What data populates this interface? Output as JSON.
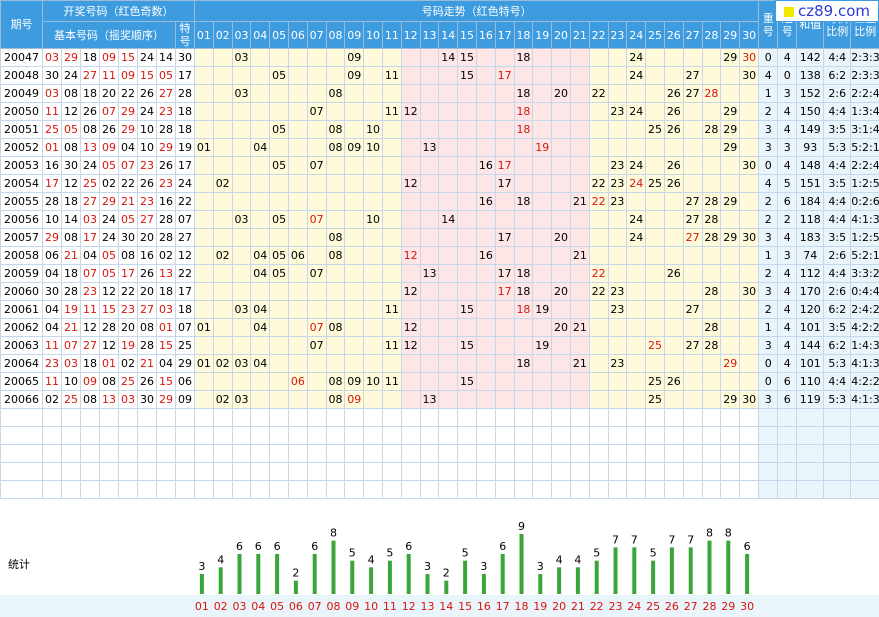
{
  "logo": {
    "text": "cz89.com"
  },
  "header": {
    "period": "期号",
    "draw_group": "开奖号码（红色奇数）",
    "trend_group": "号码走势（红色特号）",
    "basic": "基本号码（摇奖顺序）",
    "special": "特号",
    "repeat": "重号",
    "consecutive": "连号",
    "sum": "和值",
    "odd_even": "奇偶比例",
    "three_zone": "三区比例",
    "numbers": [
      "01",
      "02",
      "03",
      "04",
      "05",
      "06",
      "07",
      "08",
      "09",
      "10",
      "11",
      "12",
      "13",
      "14",
      "15",
      "16",
      "17",
      "18",
      "19",
      "20",
      "21",
      "22",
      "23",
      "24",
      "25",
      "26",
      "27",
      "28",
      "29",
      "30"
    ]
  },
  "stats": {
    "label": "统计"
  },
  "chart_data": {
    "type": "bar",
    "categories": [
      "01",
      "02",
      "03",
      "04",
      "05",
      "06",
      "07",
      "08",
      "09",
      "10",
      "11",
      "12",
      "13",
      "14",
      "15",
      "16",
      "17",
      "18",
      "19",
      "20",
      "21",
      "22",
      "23",
      "24",
      "25",
      "26",
      "27",
      "28",
      "29",
      "30"
    ],
    "values": [
      3,
      4,
      6,
      6,
      6,
      2,
      6,
      8,
      5,
      4,
      5,
      6,
      3,
      2,
      5,
      3,
      6,
      9,
      3,
      4,
      4,
      5,
      7,
      7,
      5,
      7,
      7,
      8,
      8,
      6
    ],
    "ylim": [
      0,
      9
    ],
    "bar_color": "#3aa53a"
  },
  "rows": [
    {
      "period": "20047",
      "basic": [
        "03",
        "29",
        "18",
        "09",
        "15",
        "24",
        "14"
      ],
      "special": "30",
      "trend": [
        3,
        9,
        14,
        15,
        18,
        24,
        29,
        30
      ],
      "special_pos": 30,
      "repeat": "0",
      "consecutive": "4",
      "sum": "142",
      "odd_even": "4:4",
      "zones": "2:3:3"
    },
    {
      "period": "20048",
      "basic": [
        "30",
        "24",
        "27",
        "11",
        "09",
        "15",
        "05"
      ],
      "special": "17",
      "trend": [
        5,
        9,
        11,
        15,
        17,
        24,
        27,
        30
      ],
      "special_pos": 17,
      "repeat": "4",
      "consecutive": "0",
      "sum": "138",
      "odd_even": "6:2",
      "zones": "2:3:3"
    },
    {
      "period": "20049",
      "basic": [
        "03",
        "08",
        "18",
        "20",
        "22",
        "26",
        "27"
      ],
      "special": "28",
      "trend": [
        3,
        8,
        18,
        20,
        22,
        26,
        27,
        28
      ],
      "special_pos": 28,
      "repeat": "1",
      "consecutive": "3",
      "sum": "152",
      "odd_even": "2:6",
      "zones": "2:2:4"
    },
    {
      "period": "20050",
      "basic": [
        "11",
        "12",
        "26",
        "07",
        "29",
        "24",
        "23"
      ],
      "special": "18",
      "trend": [
        7,
        11,
        12,
        18,
        23,
        24,
        26,
        29
      ],
      "special_pos": 18,
      "repeat": "2",
      "consecutive": "4",
      "sum": "150",
      "odd_even": "4:4",
      "zones": "1:3:4"
    },
    {
      "period": "20051",
      "basic": [
        "25",
        "05",
        "08",
        "26",
        "29",
        "10",
        "28"
      ],
      "special": "18",
      "trend": [
        5,
        8,
        10,
        18,
        25,
        26,
        28,
        29
      ],
      "special_pos": 18,
      "repeat": "3",
      "consecutive": "4",
      "sum": "149",
      "odd_even": "3:5",
      "zones": "3:1:4"
    },
    {
      "period": "20052",
      "basic": [
        "01",
        "08",
        "13",
        "09",
        "04",
        "10",
        "29"
      ],
      "special": "19",
      "trend": [
        1,
        4,
        8,
        9,
        10,
        13,
        19,
        29
      ],
      "special_pos": 19,
      "repeat": "3",
      "consecutive": "3",
      "sum": "93",
      "odd_even": "5:3",
      "zones": "5:2:1"
    },
    {
      "period": "20053",
      "basic": [
        "16",
        "30",
        "24",
        "05",
        "07",
        "23",
        "26"
      ],
      "special": "17",
      "trend": [
        5,
        7,
        16,
        17,
        23,
        24,
        26,
        30
      ],
      "special_pos": 17,
      "repeat": "0",
      "consecutive": "4",
      "sum": "148",
      "odd_even": "4:4",
      "zones": "2:2:4"
    },
    {
      "period": "20054",
      "basic": [
        "17",
        "12",
        "25",
        "02",
        "22",
        "26",
        "23"
      ],
      "special": "24",
      "trend": [
        2,
        12,
        17,
        22,
        23,
        24,
        25,
        26
      ],
      "special_pos": 24,
      "repeat": "4",
      "consecutive": "5",
      "sum": "151",
      "odd_even": "3:5",
      "zones": "1:2:5"
    },
    {
      "period": "20055",
      "basic": [
        "28",
        "18",
        "27",
        "29",
        "21",
        "23",
        "16"
      ],
      "special": "22",
      "trend": [
        16,
        18,
        21,
        22,
        23,
        27,
        28,
        29
      ],
      "special_pos": 22,
      "repeat": "2",
      "consecutive": "6",
      "sum": "184",
      "odd_even": "4:4",
      "zones": "0:2:6"
    },
    {
      "period": "20056",
      "basic": [
        "10",
        "14",
        "03",
        "24",
        "05",
        "27",
        "28"
      ],
      "special": "07",
      "trend": [
        3,
        5,
        7,
        10,
        14,
        24,
        27,
        28
      ],
      "special_pos": 7,
      "repeat": "2",
      "consecutive": "2",
      "sum": "118",
      "odd_even": "4:4",
      "zones": "4:1:3"
    },
    {
      "period": "20057",
      "basic": [
        "29",
        "08",
        "17",
        "24",
        "30",
        "20",
        "28"
      ],
      "special": "27",
      "trend": [
        8,
        17,
        20,
        24,
        27,
        28,
        29,
        30
      ],
      "special_pos": 27,
      "repeat": "3",
      "consecutive": "4",
      "sum": "183",
      "odd_even": "3:5",
      "zones": "1:2:5"
    },
    {
      "period": "20058",
      "basic": [
        "06",
        "21",
        "04",
        "05",
        "08",
        "16",
        "02"
      ],
      "special": "12",
      "trend": [
        2,
        4,
        5,
        6,
        8,
        12,
        16,
        21
      ],
      "special_pos": 12,
      "repeat": "1",
      "consecutive": "3",
      "sum": "74",
      "odd_even": "2:6",
      "zones": "5:2:1"
    },
    {
      "period": "20059",
      "basic": [
        "04",
        "18",
        "07",
        "05",
        "17",
        "26",
        "13"
      ],
      "special": "22",
      "trend": [
        4,
        5,
        7,
        13,
        17,
        18,
        22,
        26
      ],
      "special_pos": 22,
      "repeat": "2",
      "consecutive": "4",
      "sum": "112",
      "odd_even": "4:4",
      "zones": "3:3:2"
    },
    {
      "period": "20060",
      "basic": [
        "30",
        "28",
        "23",
        "12",
        "22",
        "20",
        "18"
      ],
      "special": "17",
      "trend": [
        12,
        17,
        18,
        20,
        22,
        23,
        28,
        30
      ],
      "special_pos": 17,
      "repeat": "3",
      "consecutive": "4",
      "sum": "170",
      "odd_even": "2:6",
      "zones": "0:4:4"
    },
    {
      "period": "20061",
      "basic": [
        "04",
        "19",
        "11",
        "15",
        "23",
        "27",
        "03"
      ],
      "special": "18",
      "trend": [
        3,
        4,
        11,
        15,
        18,
        19,
        23,
        27
      ],
      "special_pos": 18,
      "repeat": "2",
      "consecutive": "4",
      "sum": "120",
      "odd_even": "6:2",
      "zones": "2:4:2"
    },
    {
      "period": "20062",
      "basic": [
        "04",
        "21",
        "12",
        "28",
        "20",
        "08",
        "01"
      ],
      "special": "07",
      "trend": [
        1,
        4,
        7,
        8,
        12,
        20,
        21,
        28
      ],
      "special_pos": 7,
      "repeat": "1",
      "consecutive": "4",
      "sum": "101",
      "odd_even": "3:5",
      "zones": "4:2:2"
    },
    {
      "period": "20063",
      "basic": [
        "11",
        "07",
        "27",
        "12",
        "19",
        "28",
        "15"
      ],
      "special": "25",
      "trend": [
        7,
        11,
        12,
        15,
        19,
        25,
        27,
        28
      ],
      "special_pos": 25,
      "repeat": "3",
      "consecutive": "4",
      "sum": "144",
      "odd_even": "6:2",
      "zones": "1:4:3"
    },
    {
      "period": "20064",
      "basic": [
        "23",
        "03",
        "18",
        "01",
        "02",
        "21",
        "04"
      ],
      "special": "29",
      "trend": [
        1,
        2,
        3,
        4,
        18,
        21,
        23,
        29
      ],
      "special_pos": 29,
      "repeat": "0",
      "consecutive": "4",
      "sum": "101",
      "odd_even": "5:3",
      "zones": "4:1:3"
    },
    {
      "period": "20065",
      "basic": [
        "11",
        "10",
        "09",
        "08",
        "25",
        "26",
        "15"
      ],
      "special": "06",
      "trend": [
        6,
        8,
        9,
        10,
        11,
        15,
        25,
        26
      ],
      "special_pos": 6,
      "repeat": "0",
      "consecutive": "6",
      "sum": "110",
      "odd_even": "4:4",
      "zones": "4:2:2"
    },
    {
      "period": "20066",
      "basic": [
        "02",
        "25",
        "08",
        "13",
        "03",
        "30",
        "29"
      ],
      "special": "09",
      "trend": [
        2,
        3,
        8,
        9,
        13,
        25,
        29,
        30
      ],
      "special_pos": 9,
      "repeat": "3",
      "consecutive": "6",
      "sum": "119",
      "odd_even": "5:3",
      "zones": "4:1:3"
    }
  ]
}
